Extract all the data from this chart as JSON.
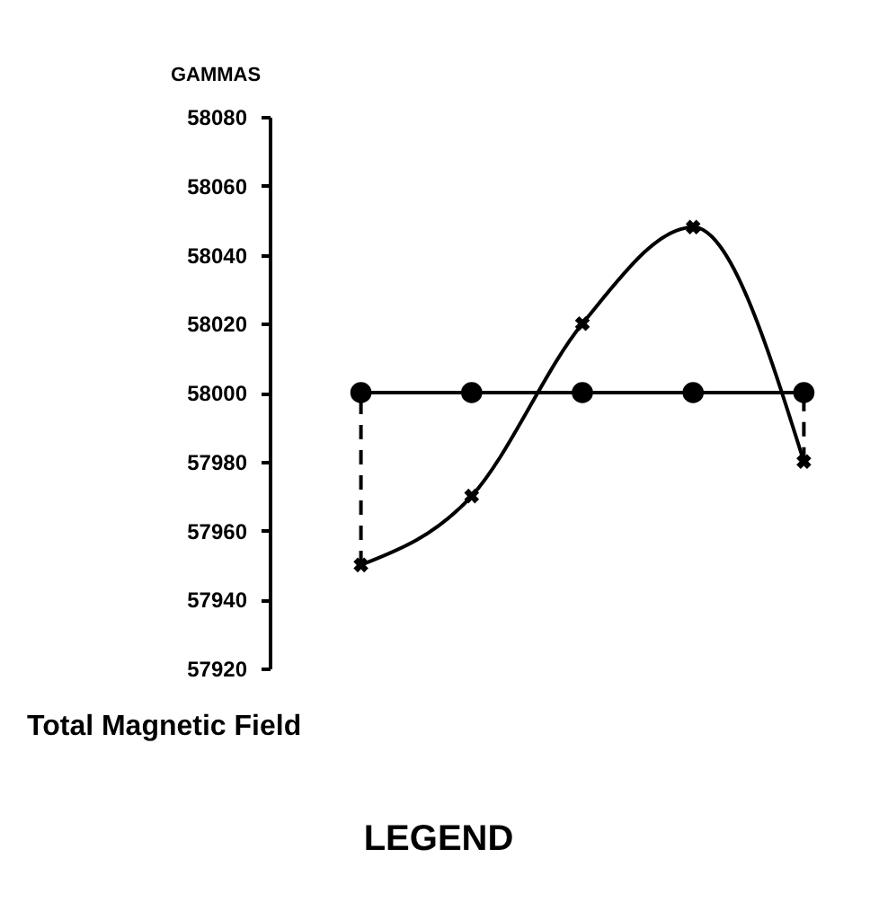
{
  "chart_data": {
    "type": "line",
    "ylabel": "GAMMAS",
    "categories": [
      null,
      null,
      null,
      null,
      null
    ],
    "ylim": [
      57920,
      58080
    ],
    "yticks": [
      57920,
      57940,
      57960,
      57980,
      58000,
      58020,
      58040,
      58060,
      58080
    ],
    "tick_labels": "y",
    "grid": false,
    "series": [
      {
        "color": "#000000",
        "marker": "circle",
        "line_style": "solid",
        "values": [
          58000,
          58000,
          58000,
          58000,
          58000
        ],
        "errors": [
          [
            57950,
            58000
          ],
          null,
          null,
          null,
          [
            57980,
            58000
          ]
        ]
      },
      {
        "color": "#000000",
        "marker": "cross",
        "line_style": "solid",
        "values": [
          57950,
          57970,
          58020,
          58048,
          57980
        ]
      }
    ],
    "annotations": [
      "Total Magnetic Field",
      "LEGEND"
    ]
  }
}
